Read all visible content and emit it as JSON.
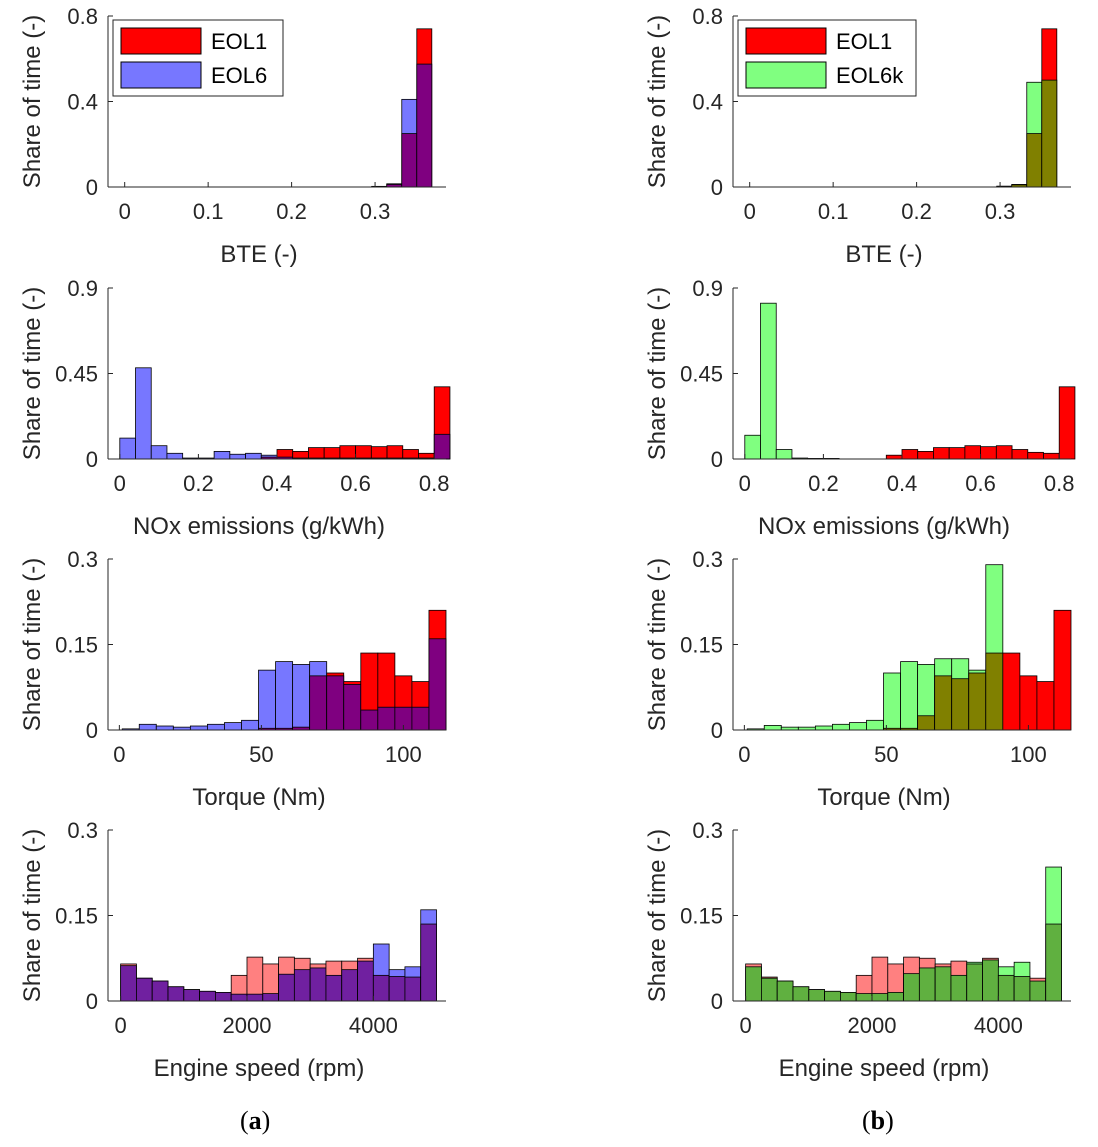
{
  "colors": {
    "eol1": "#ff0000",
    "eol6": "#7777ff",
    "eol6k": "#80ff80",
    "eol6_overlap": "#7f0080",
    "eol6k_overlap": "#808000",
    "speed_eol1": "#ff8080",
    "speed_eol6_overlap": "#7020a0",
    "speed_eol6k_overlap": "#60b040"
  },
  "panel_labels": [
    {
      "open": "(",
      "letter": "a",
      "close": ")"
    },
    {
      "open": "(",
      "letter": "b",
      "close": ")"
    }
  ],
  "chart_data": [
    {
      "id": "a-bte",
      "type": "bar",
      "column": 0,
      "row": 0,
      "xlabel": "BTE (-)",
      "ylabel": "Share of time (-)",
      "xlim": [
        -0.02,
        0.385
      ],
      "ylim": [
        0,
        0.8
      ],
      "xticks": [
        0,
        0.1,
        0.2,
        0.3
      ],
      "yticks": [
        0,
        0.4,
        0.8
      ],
      "xticklabels": [
        "0",
        "0.1",
        "0.2",
        "0.3"
      ],
      "yticklabels": [
        "0",
        "0.4",
        "0.8"
      ],
      "legend": {
        "position": "top-left",
        "entries": [
          "EOL1",
          "EOL6"
        ]
      },
      "bin_edges": [
        0.296,
        0.314,
        0.332,
        0.35,
        0.368
      ],
      "series": [
        {
          "name": "EOL1",
          "values": [
            0.002,
            0.012,
            0.25,
            0.74
          ]
        },
        {
          "name": "EOL6",
          "values": [
            0.003,
            0.015,
            0.41,
            0.575
          ]
        }
      ]
    },
    {
      "id": "a-nox",
      "type": "bar",
      "column": 0,
      "row": 1,
      "xlabel": "NOx emissions (g/kWh)",
      "ylabel": "Share of time (-)",
      "xlim": [
        -0.03,
        0.83
      ],
      "ylim": [
        0,
        0.9
      ],
      "xticks": [
        0,
        0.2,
        0.4,
        0.6,
        0.8
      ],
      "yticks": [
        0,
        0.45,
        0.9
      ],
      "xticklabels": [
        "0",
        "0.2",
        "0.4",
        "0.6",
        "0.8"
      ],
      "yticklabels": [
        "0",
        "0.45",
        "0.9"
      ],
      "bin_edges": [
        0,
        0.04,
        0.08,
        0.12,
        0.16,
        0.2,
        0.24,
        0.28,
        0.32,
        0.36,
        0.4,
        0.44,
        0.48,
        0.52,
        0.56,
        0.6,
        0.64,
        0.68,
        0.72,
        0.76,
        0.8
      ],
      "series": [
        {
          "name": "EOL1",
          "values": [
            0,
            0,
            0,
            0,
            0,
            0,
            0,
            0,
            0,
            0.01,
            0.05,
            0.04,
            0.06,
            0.06,
            0.07,
            0.07,
            0.065,
            0.07,
            0.05,
            0.03,
            0.38
          ]
        },
        {
          "name": "EOL6",
          "values": [
            0.11,
            0.48,
            0.07,
            0.03,
            0.005,
            0.005,
            0.04,
            0.025,
            0.03,
            0.02,
            0.01,
            0.005,
            0.005,
            0.005,
            0.005,
            0.005,
            0.005,
            0.005,
            0.005,
            0.005,
            0.13
          ]
        }
      ]
    },
    {
      "id": "a-torque",
      "type": "bar",
      "column": 0,
      "row": 2,
      "xlabel": "Torque (Nm)",
      "ylabel": "Share of time (-)",
      "xlim": [
        -4,
        115
      ],
      "ylim": [
        0,
        0.3
      ],
      "xticks": [
        0,
        50,
        100
      ],
      "yticks": [
        0,
        0.15,
        0.3
      ],
      "xticklabels": [
        "0",
        "50",
        "100"
      ],
      "yticklabels": [
        "0",
        "0.15",
        "0.3"
      ],
      "bin_edges": [
        1,
        7,
        13,
        19,
        25,
        31,
        37,
        43,
        49,
        55,
        61,
        67,
        73,
        79,
        85,
        91,
        97,
        103,
        109,
        115
      ],
      "series": [
        {
          "name": "EOL1",
          "values": [
            0,
            0,
            0,
            0,
            0,
            0,
            0,
            0,
            0.003,
            0.003,
            0.005,
            0.095,
            0.1,
            0.085,
            0.135,
            0.135,
            0.095,
            0.085,
            0.21
          ]
        },
        {
          "name": "EOL6",
          "values": [
            0.002,
            0.01,
            0.007,
            0.005,
            0.007,
            0.01,
            0.013,
            0.017,
            0.105,
            0.12,
            0.115,
            0.12,
            0.095,
            0.08,
            0.035,
            0.04,
            0.04,
            0.04,
            0.16
          ]
        }
      ]
    },
    {
      "id": "a-speed",
      "type": "bar",
      "column": 0,
      "row": 3,
      "xlabel": "Engine speed (rpm)",
      "ylabel": "Share of time (-)",
      "xlim": [
        -200,
        5150
      ],
      "ylim": [
        0,
        0.3
      ],
      "xticks": [
        0,
        2000,
        4000
      ],
      "yticks": [
        0,
        0.15,
        0.3
      ],
      "xticklabels": [
        "0",
        "2000",
        "4000"
      ],
      "yticklabels": [
        "0",
        "0.15",
        "0.3"
      ],
      "bin_edges": [
        0,
        250,
        500,
        750,
        1000,
        1250,
        1500,
        1750,
        2000,
        2250,
        2500,
        2750,
        3000,
        3250,
        3500,
        3750,
        4000,
        4250,
        4500,
        4750,
        5000
      ],
      "series": [
        {
          "name": "EOL1",
          "values": [
            0.065,
            0.04,
            0.035,
            0.025,
            0.02,
            0.017,
            0.015,
            0.045,
            0.077,
            0.065,
            0.077,
            0.075,
            0.065,
            0.07,
            0.07,
            0.075,
            0.045,
            0.043,
            0.042,
            0.135
          ]
        },
        {
          "name": "EOL6",
          "values": [
            0.062,
            0.04,
            0.035,
            0.025,
            0.02,
            0.017,
            0.015,
            0.012,
            0.012,
            0.013,
            0.047,
            0.055,
            0.058,
            0.045,
            0.055,
            0.07,
            0.1,
            0.055,
            0.06,
            0.16
          ]
        }
      ]
    },
    {
      "id": "b-bte",
      "type": "bar",
      "column": 1,
      "row": 0,
      "xlabel": "BTE (-)",
      "ylabel": "Share of time (-)",
      "xlim": [
        -0.02,
        0.385
      ],
      "ylim": [
        0,
        0.8
      ],
      "xticks": [
        0,
        0.1,
        0.2,
        0.3
      ],
      "yticks": [
        0,
        0.4,
        0.8
      ],
      "xticklabels": [
        "0",
        "0.1",
        "0.2",
        "0.3"
      ],
      "yticklabels": [
        "0",
        "0.4",
        "0.8"
      ],
      "legend": {
        "position": "top-left",
        "entries": [
          "EOL1",
          "EOL6k"
        ]
      },
      "bin_edges": [
        0.296,
        0.314,
        0.332,
        0.35,
        0.368
      ],
      "series": [
        {
          "name": "EOL1",
          "values": [
            0.002,
            0.012,
            0.25,
            0.74
          ]
        },
        {
          "name": "EOL6k",
          "values": [
            0.004,
            0.01,
            0.49,
            0.5
          ]
        }
      ]
    },
    {
      "id": "b-nox",
      "type": "bar",
      "column": 1,
      "row": 1,
      "xlabel": "NOx emissions (g/kWh)",
      "ylabel": "Share of time (-)",
      "xlim": [
        -0.03,
        0.83
      ],
      "ylim": [
        0,
        0.9
      ],
      "xticks": [
        0,
        0.2,
        0.4,
        0.6,
        0.8
      ],
      "yticks": [
        0,
        0.45,
        0.9
      ],
      "xticklabels": [
        "0",
        "0.2",
        "0.4",
        "0.6",
        "0.8"
      ],
      "yticklabels": [
        "0",
        "0.45",
        "0.9"
      ],
      "bin_edges": [
        0,
        0.04,
        0.08,
        0.12,
        0.16,
        0.2,
        0.24,
        0.28,
        0.32,
        0.36,
        0.4,
        0.44,
        0.48,
        0.52,
        0.56,
        0.6,
        0.64,
        0.68,
        0.72,
        0.76,
        0.8
      ],
      "series": [
        {
          "name": "EOL1",
          "values": [
            0,
            0,
            0,
            0,
            0,
            0,
            0,
            0,
            0,
            0.02,
            0.05,
            0.04,
            0.06,
            0.06,
            0.07,
            0.065,
            0.07,
            0.05,
            0.035,
            0.03,
            0.38
          ]
        },
        {
          "name": "EOL6k",
          "values": [
            0.125,
            0.82,
            0.05,
            0.005,
            0.003,
            0.003,
            0,
            0,
            0,
            0,
            0,
            0,
            0,
            0,
            0,
            0,
            0,
            0,
            0,
            0,
            0
          ]
        }
      ]
    },
    {
      "id": "b-torque",
      "type": "bar",
      "column": 1,
      "row": 2,
      "xlabel": "Torque (Nm)",
      "ylabel": "Share of time (-)",
      "xlim": [
        -4,
        115
      ],
      "ylim": [
        0,
        0.3
      ],
      "xticks": [
        0,
        50,
        100
      ],
      "yticks": [
        0,
        0.15,
        0.3
      ],
      "xticklabels": [
        "0",
        "50",
        "100"
      ],
      "yticklabels": [
        "0",
        "0.15",
        "0.3"
      ],
      "bin_edges": [
        1,
        7,
        13,
        19,
        25,
        31,
        37,
        43,
        49,
        55,
        61,
        67,
        73,
        79,
        85,
        91,
        97,
        103,
        109,
        115
      ],
      "series": [
        {
          "name": "EOL1",
          "values": [
            0,
            0,
            0,
            0,
            0,
            0,
            0,
            0,
            0.003,
            0.003,
            0.025,
            0.095,
            0.09,
            0.1,
            0.135,
            0.135,
            0.095,
            0.085,
            0.21
          ]
        },
        {
          "name": "EOL6k",
          "values": [
            0.002,
            0.008,
            0.005,
            0.005,
            0.007,
            0.01,
            0.013,
            0.017,
            0.1,
            0.12,
            0.115,
            0.125,
            0.125,
            0.105,
            0.29,
            0,
            0,
            0,
            0
          ]
        }
      ]
    },
    {
      "id": "b-speed",
      "type": "bar",
      "column": 1,
      "row": 3,
      "xlabel": "Engine speed (rpm)",
      "ylabel": "Share of time (-)",
      "xlim": [
        -200,
        5150
      ],
      "ylim": [
        0,
        0.3
      ],
      "xticks": [
        0,
        2000,
        4000
      ],
      "yticks": [
        0,
        0.15,
        0.3
      ],
      "xticklabels": [
        "0",
        "2000",
        "4000"
      ],
      "yticklabels": [
        "0",
        "0.15",
        "0.3"
      ],
      "bin_edges": [
        0,
        250,
        500,
        750,
        1000,
        1250,
        1500,
        1750,
        2000,
        2250,
        2500,
        2750,
        3000,
        3250,
        3500,
        3750,
        4000,
        4250,
        4500,
        4750,
        5000
      ],
      "series": [
        {
          "name": "EOL1",
          "values": [
            0.065,
            0.042,
            0.035,
            0.025,
            0.02,
            0.017,
            0.015,
            0.045,
            0.077,
            0.065,
            0.077,
            0.075,
            0.065,
            0.07,
            0.065,
            0.075,
            0.045,
            0.043,
            0.04,
            0.135
          ]
        },
        {
          "name": "EOL6k",
          "values": [
            0.06,
            0.04,
            0.035,
            0.025,
            0.02,
            0.017,
            0.015,
            0.013,
            0.013,
            0.015,
            0.048,
            0.058,
            0.06,
            0.045,
            0.068,
            0.072,
            0.06,
            0.068,
            0.035,
            0.235
          ]
        }
      ]
    }
  ]
}
